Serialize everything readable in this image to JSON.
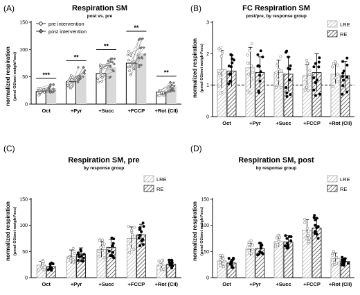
{
  "figure": {
    "panel_letters": [
      "(A)",
      "(B)",
      "(C)",
      "(D)"
    ]
  },
  "chart_data": [
    {
      "type": "bar",
      "panel": "(A)",
      "title": "Respiration SM",
      "subtitle": "post vs. pre",
      "ylabel": "normalized respiration",
      "ylabel2": "(pmol O2/wet weight*sec)",
      "ylim": [
        0,
        150
      ],
      "yticks": [
        0,
        50,
        100,
        150
      ],
      "categories": [
        "Oct",
        "+Pyr",
        "+Succ",
        "+FCCP",
        "+Rot (CII)"
      ],
      "legend": {
        "placement": "top-left",
        "entries": [
          "pre intervention",
          "post intervention"
        ]
      },
      "series": [
        {
          "name": "pre intervention",
          "values": [
            23,
            41,
            56,
            75,
            22
          ]
        },
        {
          "name": "post intervention",
          "values": [
            29,
            53,
            68,
            93,
            32
          ]
        }
      ],
      "significance": [
        "***",
        "**",
        "**",
        "**",
        "**"
      ],
      "colors": {
        "pre": "#ffffff",
        "post": "#d9d9d9",
        "outline": "#000000"
      }
    },
    {
      "type": "bar",
      "panel": "(B)",
      "title": "FC Respiration SM",
      "subtitle": "post/pre, by response group",
      "ylabel": "normalized respiration",
      "ylabel2": "(pmol O2/wet weight*sec)",
      "ylim": [
        0,
        3
      ],
      "yticks": [
        0,
        1,
        2,
        3
      ],
      "reference_line": 1,
      "categories": [
        "Oct",
        "+Pyr",
        "+Succ",
        "+FCCP",
        "+Rot (CII)"
      ],
      "legend": {
        "placement": "top-right",
        "entries": [
          "LRE",
          "RE"
        ]
      },
      "series": [
        {
          "name": "LRE",
          "values": [
            1.5,
            1.55,
            1.4,
            1.3,
            1.35
          ],
          "sd": [
            0.6,
            0.65,
            0.4,
            0.35,
            0.3
          ]
        },
        {
          "name": "RE",
          "values": [
            1.45,
            1.4,
            1.35,
            1.4,
            1.3
          ],
          "sd": [
            0.5,
            0.5,
            0.55,
            0.6,
            0.45
          ]
        }
      ]
    },
    {
      "type": "bar",
      "panel": "(C)",
      "title": "Respiration SM, pre",
      "subtitle": "by response group",
      "ylabel": "normalized respiration",
      "ylabel2": "(pmol O2/wet weight*sec)",
      "ylim": [
        0,
        150
      ],
      "yticks": [
        0,
        50,
        100,
        150
      ],
      "categories": [
        "Oct",
        "+Pyr",
        "+Succ",
        "+FCCP",
        "+Rot (CII)"
      ],
      "legend": {
        "placement": "top-right",
        "entries": [
          "LRE",
          "RE"
        ]
      },
      "series": [
        {
          "name": "LRE",
          "values": [
            24,
            40,
            54,
            75,
            24
          ],
          "sd": [
            7,
            13,
            15,
            22,
            7
          ]
        },
        {
          "name": "RE",
          "values": [
            21,
            45,
            58,
            82,
            26
          ],
          "sd": [
            6,
            12,
            15,
            20,
            7
          ]
        }
      ]
    },
    {
      "type": "bar",
      "panel": "(D)",
      "title": "Respiration SM, post",
      "subtitle": "by response group",
      "ylabel": "normalized respiration",
      "ylabel2": "(pmol O2/wet weight*sec)",
      "ylim": [
        0,
        150
      ],
      "yticks": [
        0,
        50,
        100,
        150
      ],
      "categories": [
        "Oct",
        "+Pyr",
        "+Succ",
        "+FCCP",
        "+Rot (CII)"
      ],
      "legend": {
        "placement": "top-right",
        "entries": [
          "LRE",
          "RE"
        ]
      },
      "series": [
        {
          "name": "LRE",
          "values": [
            32,
            54,
            69,
            91,
            37
          ],
          "sd": [
            8,
            12,
            10,
            20,
            10
          ]
        },
        {
          "name": "RE",
          "values": [
            28,
            56,
            68,
            95,
            31
          ],
          "sd": [
            7,
            10,
            12,
            18,
            6
          ]
        }
      ]
    }
  ]
}
